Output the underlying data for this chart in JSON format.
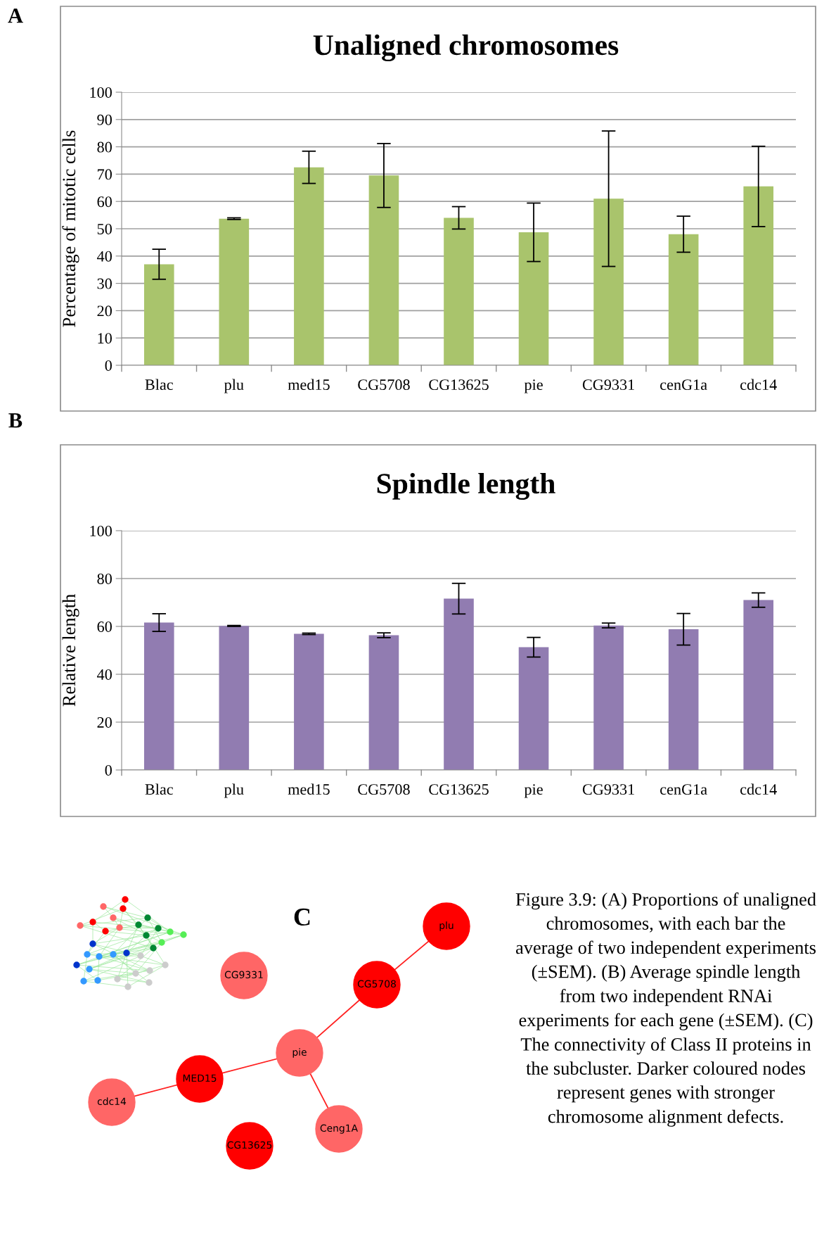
{
  "chart_data": [
    {
      "type": "bar",
      "title": "Unaligned chromosomes",
      "ylabel": "Percentage of mitotic cells",
      "annotations": [
        "A"
      ],
      "categories": [
        "Blac",
        "plu",
        "med15",
        "CG5708",
        "CG13625",
        "pie",
        "CG9331",
        "cenG1a",
        "cdc14"
      ],
      "values": [
        37,
        53.7,
        72.5,
        69.5,
        54,
        48.7,
        61,
        48,
        65.5
      ],
      "errors": [
        5.5,
        0.3,
        5.9,
        11.7,
        4.1,
        10.7,
        24.8,
        6.6,
        14.7
      ],
      "color": "#a9c46c",
      "ylim": [
        0,
        100
      ],
      "yticks": [
        0,
        10,
        20,
        30,
        40,
        50,
        60,
        70,
        80,
        90,
        100
      ],
      "grid": "y",
      "legend": false
    },
    {
      "type": "bar",
      "title": "Spindle length",
      "ylabel": "Relative length",
      "annotations": [
        "B"
      ],
      "categories": [
        "Blac",
        "plu",
        "med15",
        "CG5708",
        "CG13625",
        "pie",
        "CG9331",
        "cenG1a",
        "cdc14"
      ],
      "values": [
        61.6,
        60.2,
        56.9,
        56.3,
        71.6,
        51.3,
        60.4,
        58.8,
        71.0
      ],
      "errors": [
        3.7,
        0.2,
        0.3,
        1.0,
        6.4,
        4.1,
        1.0,
        6.6,
        3.0
      ],
      "color": "#917cb1",
      "ylim": [
        0,
        100
      ],
      "yticks": [
        0,
        20,
        40,
        60,
        80,
        100
      ],
      "grid": "y",
      "legend": false
    },
    {
      "type": "other",
      "title": "C",
      "annotations": [
        "plu",
        "CG9331",
        "CG5708",
        "pie",
        "MED15",
        "cdc14",
        "Ceng1A",
        "CG13625",
        "Figure 3.9: (A) Proportions of unaligned chromosomes, with each bar the average of two independent experiments (±SEM). (B) Average spindle length from two independent RNAi experiments for each gene (±SEM). (C) The connectivity of Class II proteins in the subcluster. Darker coloured nodes represent genes with stronger chromosome alignment defects."
      ]
    }
  ]
}
